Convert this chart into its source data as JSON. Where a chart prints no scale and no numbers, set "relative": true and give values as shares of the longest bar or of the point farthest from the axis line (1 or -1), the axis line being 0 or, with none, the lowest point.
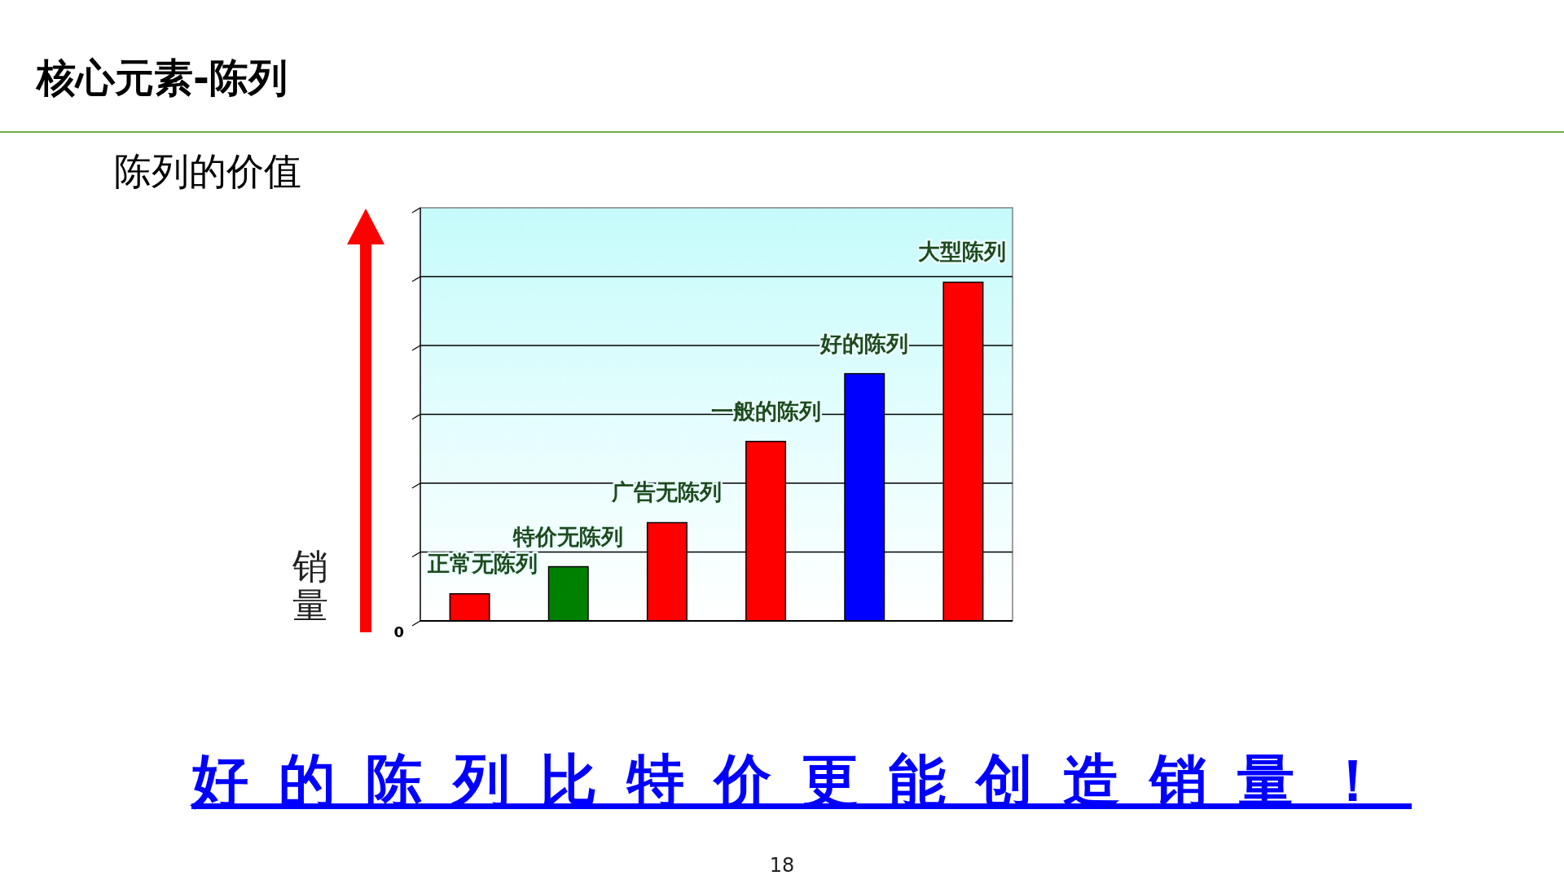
{
  "chart_data": {
    "type": "bar",
    "title": "核心元素-陈列",
    "subtitle": "陈列的价值",
    "ylabel": "销量",
    "categories": [
      "正常无陈列",
      "特价无陈列",
      "广告无陈列",
      "一般的陈列",
      "好的陈列",
      "大型陈列"
    ],
    "values": [
      0.08,
      0.16,
      0.29,
      0.53,
      0.73,
      1
    ],
    "colors": [
      "#ff0000",
      "#008000",
      "#ff0000",
      "#ff0000",
      "#0000ff",
      "#ff0000"
    ],
    "relative": true,
    "grid": "y",
    "annotations": [
      "0",
      "好的陈列比特价更能创造销量！",
      "18"
    ]
  }
}
